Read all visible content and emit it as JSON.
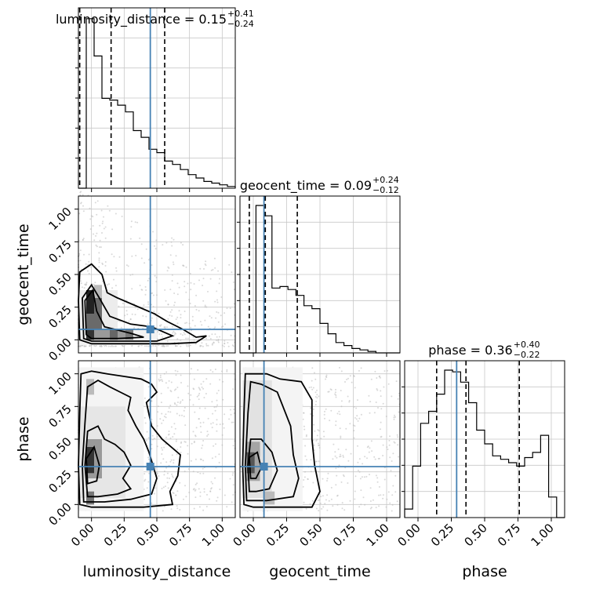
{
  "chart_data": {
    "type": "corner",
    "parameters": [
      "luminosity_distance",
      "geocent_time",
      "phase"
    ],
    "axis_range": [
      -0.1,
      1.1
    ],
    "ticks": [
      0.0,
      0.25,
      0.5,
      0.75,
      1.0
    ],
    "tick_labels": [
      "0.00",
      "0.25",
      "0.50",
      "0.75",
      "1.00"
    ],
    "grid": true,
    "truths": {
      "luminosity_distance": 0.45,
      "geocent_time": 0.08,
      "phase": 0.29
    },
    "titles": [
      {
        "name": "luminosity_distance",
        "median": "0.15",
        "plus": "+0.41",
        "minus": "−0.24"
      },
      {
        "name": "geocent_time",
        "median": "0.09",
        "plus": "+0.24",
        "minus": "−0.12"
      },
      {
        "name": "phase",
        "median": "0.36",
        "plus": "+0.40",
        "minus": "−0.22"
      }
    ],
    "quantiles": {
      "luminosity_distance": [
        -0.09,
        0.15,
        0.56
      ],
      "geocent_time": [
        -0.03,
        0.09,
        0.33
      ],
      "phase": [
        0.14,
        0.36,
        0.76
      ]
    },
    "histograms": {
      "luminosity_distance": {
        "bin_start": -0.1,
        "bin_width": 0.06,
        "values": [
          0.0,
          1.0,
          0.78,
          0.53,
          0.52,
          0.49,
          0.45,
          0.34,
          0.3,
          0.23,
          0.21,
          0.16,
          0.14,
          0.11,
          0.08,
          0.06,
          0.04,
          0.03,
          0.02,
          0.01
        ]
      },
      "geocent_time": {
        "bin_start": -0.1,
        "bin_width": 0.06,
        "values": [
          0.0,
          0.0,
          1.0,
          0.93,
          0.44,
          0.45,
          0.43,
          0.39,
          0.32,
          0.3,
          0.2,
          0.13,
          0.07,
          0.05,
          0.03,
          0.02,
          0.01,
          0.0,
          0.0,
          0.0
        ]
      },
      "phase": {
        "bin_start": -0.1,
        "bin_width": 0.06,
        "values": [
          0.05,
          0.3,
          0.55,
          0.62,
          0.72,
          0.86,
          0.85,
          0.79,
          0.67,
          0.51,
          0.43,
          0.36,
          0.34,
          0.32,
          0.3,
          0.35,
          0.38,
          0.48,
          0.12,
          0.0
        ]
      }
    }
  }
}
